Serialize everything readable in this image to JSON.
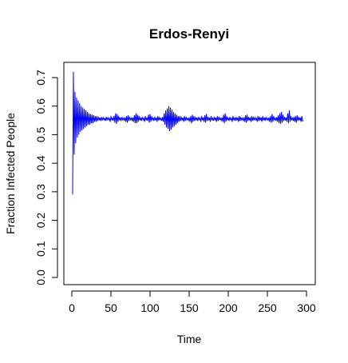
{
  "chart_data": {
    "type": "line",
    "title": "Erdos-Renyi",
    "xlabel": "Time",
    "ylabel": "Fraction Infected People",
    "xlim": [
      0,
      300
    ],
    "ylim": [
      0,
      0.72
    ],
    "xticks": [
      0,
      50,
      100,
      150,
      200,
      250,
      300
    ],
    "yticks": [
      0.0,
      0.1,
      0.2,
      0.3,
      0.4,
      0.5,
      0.6,
      0.7
    ],
    "xtick_labels": [
      "0",
      "50",
      "100",
      "150",
      "200",
      "250",
      "300"
    ],
    "ytick_labels": [
      "0.0",
      "0.1",
      "0.2",
      "0.3",
      "0.4",
      "0.5",
      "0.6",
      "0.7"
    ],
    "grid": false,
    "legend": "none",
    "series": [
      {
        "color": "#0000ff",
        "x_start": 1,
        "x_step": 1,
        "values": [
          0.29,
          0.72,
          0.43,
          0.65,
          0.47,
          0.63,
          0.49,
          0.62,
          0.5,
          0.61,
          0.51,
          0.6,
          0.515,
          0.595,
          0.52,
          0.59,
          0.525,
          0.585,
          0.53,
          0.58,
          0.535,
          0.575,
          0.535,
          0.572,
          0.54,
          0.57,
          0.54,
          0.568,
          0.545,
          0.565,
          0.545,
          0.565,
          0.548,
          0.562,
          0.55,
          0.56,
          0.548,
          0.562,
          0.55,
          0.56,
          0.552,
          0.558,
          0.548,
          0.562,
          0.55,
          0.56,
          0.552,
          0.558,
          0.545,
          0.565,
          0.55,
          0.56,
          0.548,
          0.566,
          0.542,
          0.575,
          0.538,
          0.572,
          0.545,
          0.565,
          0.55,
          0.56,
          0.548,
          0.562,
          0.552,
          0.558,
          0.55,
          0.56,
          0.545,
          0.565,
          0.542,
          0.568,
          0.548,
          0.562,
          0.552,
          0.558,
          0.55,
          0.56,
          0.545,
          0.568,
          0.54,
          0.575,
          0.54,
          0.57,
          0.545,
          0.565,
          0.55,
          0.56,
          0.548,
          0.562,
          0.552,
          0.558,
          0.545,
          0.565,
          0.55,
          0.56,
          0.548,
          0.57,
          0.542,
          0.572,
          0.545,
          0.565,
          0.55,
          0.56,
          0.548,
          0.562,
          0.55,
          0.56,
          0.545,
          0.565,
          0.55,
          0.56,
          0.552,
          0.558,
          0.548,
          0.562,
          0.545,
          0.575,
          0.535,
          0.585,
          0.525,
          0.592,
          0.52,
          0.6,
          0.512,
          0.595,
          0.518,
          0.588,
          0.525,
          0.58,
          0.53,
          0.575,
          0.535,
          0.57,
          0.54,
          0.565,
          0.545,
          0.565,
          0.548,
          0.562,
          0.55,
          0.56,
          0.545,
          0.565,
          0.548,
          0.562,
          0.552,
          0.558,
          0.55,
          0.56,
          0.545,
          0.565,
          0.54,
          0.57,
          0.545,
          0.565,
          0.548,
          0.562,
          0.55,
          0.56,
          0.548,
          0.562,
          0.552,
          0.558,
          0.545,
          0.565,
          0.55,
          0.56,
          0.545,
          0.568,
          0.542,
          0.572,
          0.548,
          0.562,
          0.55,
          0.56,
          0.545,
          0.565,
          0.552,
          0.558,
          0.548,
          0.562,
          0.55,
          0.56,
          0.545,
          0.565,
          0.548,
          0.562,
          0.552,
          0.558,
          0.55,
          0.56,
          0.545,
          0.57,
          0.54,
          0.575,
          0.545,
          0.565,
          0.55,
          0.56,
          0.548,
          0.562,
          0.552,
          0.558,
          0.545,
          0.565,
          0.55,
          0.56,
          0.548,
          0.562,
          0.55,
          0.56,
          0.545,
          0.565,
          0.548,
          0.562,
          0.552,
          0.558,
          0.55,
          0.56,
          0.545,
          0.568,
          0.542,
          0.57,
          0.548,
          0.562,
          0.55,
          0.56,
          0.545,
          0.565,
          0.548,
          0.562,
          0.55,
          0.56,
          0.552,
          0.558,
          0.545,
          0.565,
          0.548,
          0.562,
          0.55,
          0.56,
          0.545,
          0.565,
          0.55,
          0.56,
          0.548,
          0.562,
          0.552,
          0.558,
          0.55,
          0.56,
          0.545,
          0.565,
          0.542,
          0.572,
          0.545,
          0.565,
          0.55,
          0.56,
          0.548,
          0.562,
          0.545,
          0.568,
          0.54,
          0.575,
          0.538,
          0.58,
          0.542,
          0.57,
          0.548,
          0.562,
          0.55,
          0.56,
          0.545,
          0.575,
          0.54,
          0.585,
          0.545,
          0.565,
          0.55,
          0.56,
          0.548,
          0.562,
          0.545,
          0.565,
          0.542,
          0.568,
          0.548,
          0.562,
          0.55,
          0.56,
          0.545,
          0.565,
          0.548,
          0.55
        ]
      }
    ]
  }
}
